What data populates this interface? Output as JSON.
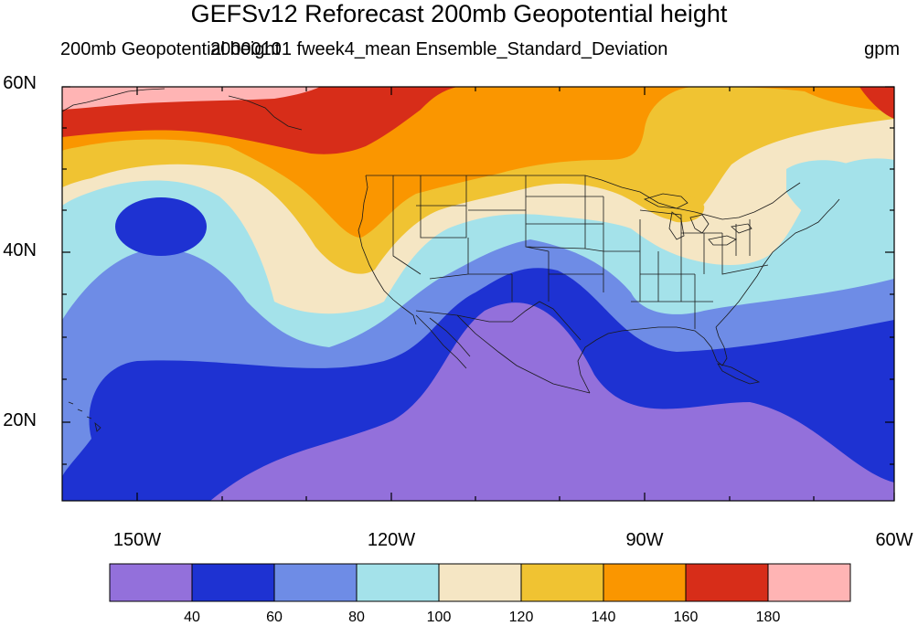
{
  "title": "GEFSv12 Reforecast 200mb Geopotential height",
  "left_subtitle": "200mb Geopotential height",
  "center_subtitle": "20000101 fweek4_mean Ensemble_Standard_Deviation",
  "units": "gpm",
  "map": {
    "projection": "cylindrical-equidistant",
    "lon_range": [
      -160,
      -60
    ],
    "lat_range": [
      10,
      60
    ],
    "features": [
      "coastlines",
      "us-state-boundaries",
      "country-boundaries"
    ]
  },
  "axes": {
    "y_labels": [
      "60N",
      "40N",
      "20N"
    ],
    "x_labels": [
      "150W",
      "120W",
      "90W",
      "60W"
    ]
  },
  "colorbar": {
    "levels": [
      "40",
      "60",
      "80",
      "100",
      "120",
      "140",
      "160",
      "180"
    ],
    "colors": [
      "#9370db",
      "#1e32d2",
      "#6e8ce6",
      "#a4e2ea",
      "#f5e6c4",
      "#f0c332",
      "#fa9600",
      "#d72d19",
      "#ffb4b4"
    ]
  },
  "chart_data": {
    "type": "heatmap",
    "variable": "200mb Geopotential height ensemble standard deviation",
    "units": "gpm",
    "contour_levels": [
      40,
      60,
      80,
      100,
      120,
      140,
      160,
      180
    ],
    "fill_colors": [
      "#9370db",
      "#1e32d2",
      "#6e8ce6",
      "#a4e2ea",
      "#f5e6c4",
      "#f0c332",
      "#fa9600",
      "#d72d19",
      "#ffb4b4"
    ],
    "lon_range": [
      -160,
      -60
    ],
    "lat_range": [
      10,
      60
    ],
    "regions": [
      {
        "area": "tropical eastern Pacific / Mexico / Gulf",
        "range": "<40"
      },
      {
        "area": "subtropical Pacific and Atlantic band",
        "range": "40-60"
      },
      {
        "area": "closed low near 45N 145W",
        "range": "40-60"
      },
      {
        "area": "southern US / mid-Atlantic",
        "range": "60-100"
      },
      {
        "area": "central-northern US",
        "range": "100-140"
      },
      {
        "area": "Pacific Northwest / northern Plains",
        "range": "140-160"
      },
      {
        "area": "Gulf of Alaska / Alaska",
        "range": "160-180"
      },
      {
        "area": "northwest corner (Alaska coast)",
        "range": ">180"
      },
      {
        "area": "northeast corner (Labrador)",
        "range": "160-180"
      }
    ]
  }
}
